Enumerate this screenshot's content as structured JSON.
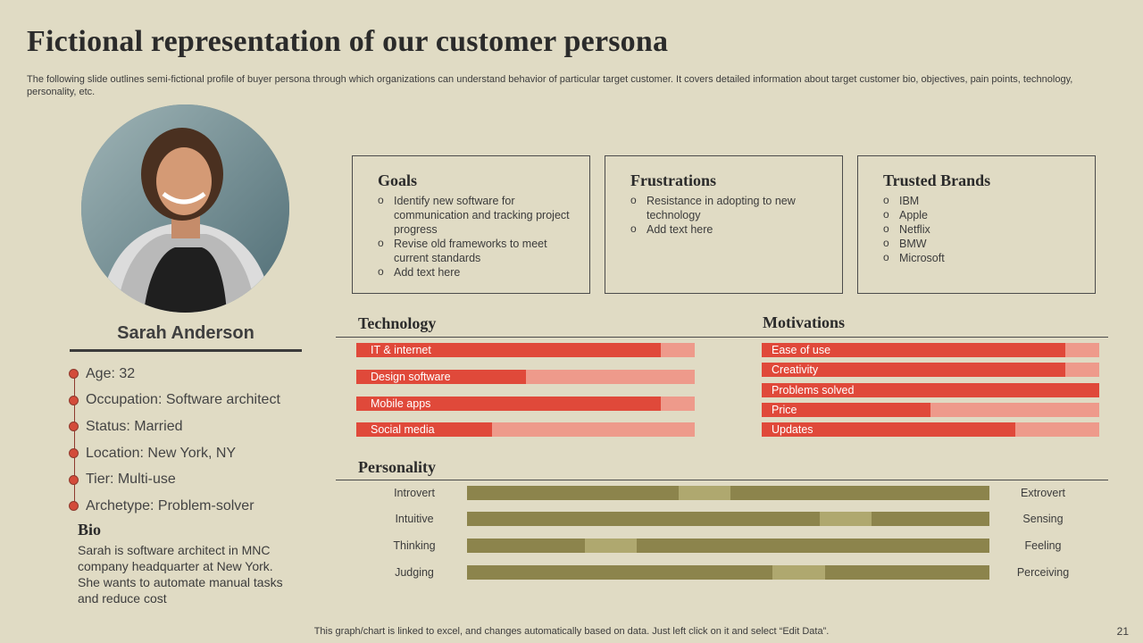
{
  "title": "Fictional representation  of our customer persona",
  "subtitle": "The following slide outlines semi-fictional profile of buyer persona through which organizations can understand behavior of particular target customer. It covers detailed information about target customer bio, objectives, pain points, technology, personality, etc.",
  "profile": {
    "name": "Sarah Anderson",
    "attributes": [
      "Age: 32",
      "Occupation:  Software architect",
      "Status: Married",
      "Location: New York,  NY",
      "Tier: Multi-use",
      "Archetype:  Problem-solver"
    ],
    "bio_heading": "Bio",
    "bio_text": "Sarah is software architect in MNC company headquarter at New York.  She wants to automate manual tasks and reduce cost"
  },
  "goals": {
    "heading": "Goals",
    "items": [
      "Identify new software for communication and tracking project progress",
      "Revise old frameworks to meet current standards",
      "Add text here"
    ]
  },
  "frustrations": {
    "heading": "Frustrations",
    "items": [
      "Resistance in adopting to new technology",
      "Add text here"
    ]
  },
  "brands": {
    "heading": "Trusted Brands",
    "items": [
      "IBM",
      "Apple",
      "Netflix",
      "BMW",
      "Microsoft"
    ]
  },
  "technology": {
    "heading": "Technology",
    "bars": [
      {
        "label": "IT & internet",
        "value": 0.9
      },
      {
        "label": "Design software",
        "value": 0.5
      },
      {
        "label": "Mobile apps",
        "value": 0.9
      },
      {
        "label": "Social media",
        "value": 0.4
      }
    ]
  },
  "motivations": {
    "heading": "Motivations",
    "bars": [
      {
        "label": "Ease of use",
        "value": 0.9
      },
      {
        "label": "Creativity",
        "value": 0.9
      },
      {
        "label": "Problems solved",
        "value": 1.0
      },
      {
        "label": "Price",
        "value": 0.5
      },
      {
        "label": "Updates",
        "value": 0.75
      }
    ]
  },
  "personality": {
    "heading": "Personality",
    "rows": [
      {
        "left": "Introvert",
        "right": "Extrovert",
        "value": 0.45
      },
      {
        "left": "Intuitive",
        "right": "Sensing",
        "value": 0.75
      },
      {
        "left": "Thinking",
        "right": "Feeling",
        "value": 0.25
      },
      {
        "left": "Judging",
        "right": "Perceiving",
        "value": 0.65
      }
    ]
  },
  "footer": "This graph/chart is linked to excel,  and changes automatically based on data. Just left click on it and select “Edit Data”.",
  "page_number": "21",
  "colors": {
    "background": "#e0dbc4",
    "bar_fill": "#e0493a",
    "bar_track": "#ee9a8b",
    "personality_track": "#8c844c",
    "personality_marker": "#afa86f"
  }
}
